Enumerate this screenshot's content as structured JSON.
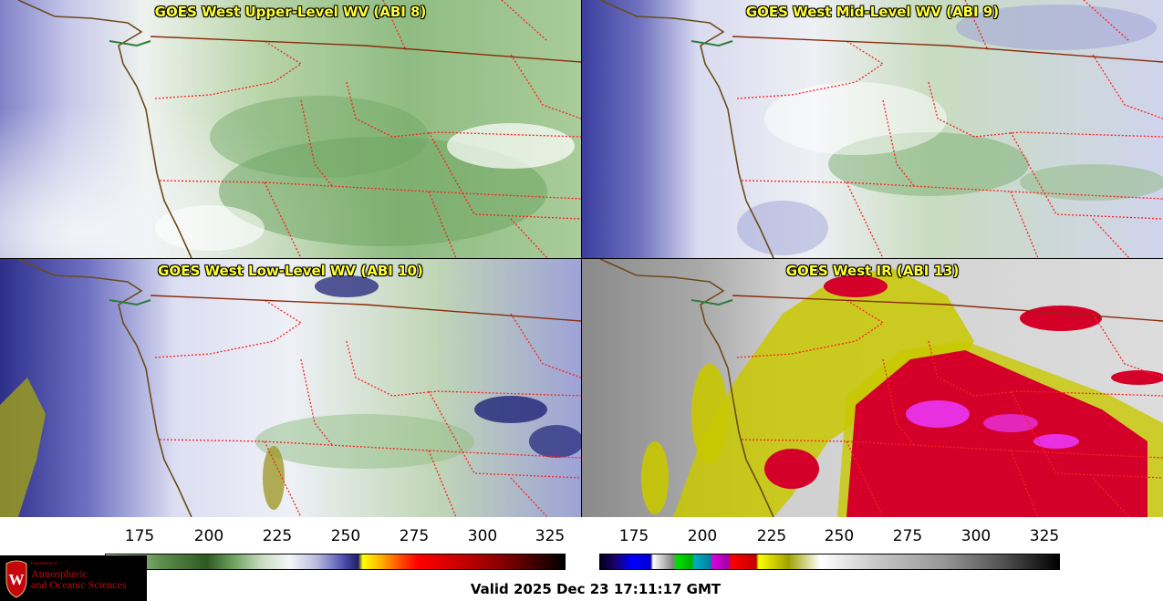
{
  "panels": [
    {
      "title": "GOES West Upper-Level WV (ABI 8)"
    },
    {
      "title": "GOES West Mid-Level WV (ABI 9)"
    },
    {
      "title": "GOES West Low-Level WV (ABI 10)"
    },
    {
      "title": "GOES West IR (ABI 13)"
    }
  ],
  "colorbars": [
    {
      "name": "wv",
      "ticks": [
        "175",
        "200",
        "225",
        "250",
        "275",
        "300",
        "325"
      ],
      "range": [
        163,
        330
      ]
    },
    {
      "name": "ir",
      "ticks": [
        "175",
        "200",
        "225",
        "250",
        "275",
        "300",
        "325"
      ],
      "range": [
        163,
        330
      ]
    }
  ],
  "logo": {
    "small": "Department of",
    "line1": "Atmospheric",
    "line2": "and Oceanic Sciences"
  },
  "footer": {
    "valid": "Valid 2025 Dec 23 17:11:17 GMT"
  },
  "colors": {
    "title": "#ffff33",
    "state_borders": "#ff2020",
    "coast": "#6b4a1a",
    "logo_red": "#c5050c"
  }
}
